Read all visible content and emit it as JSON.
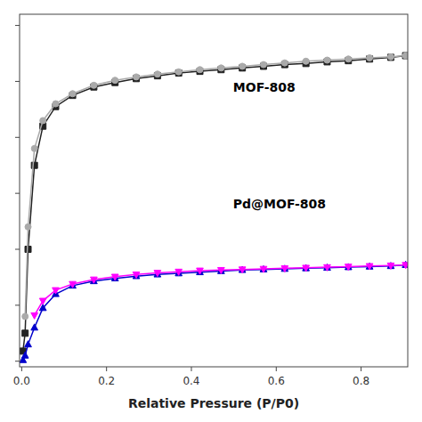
{
  "chart_data": {
    "type": "line",
    "xlabel": "Relative Pressure (P/P0)",
    "xlim": [
      -0.005,
      0.91
    ],
    "ylim": [
      -10,
      620
    ],
    "xticks": [
      {
        "value": 0,
        "label": "0.0"
      },
      0.2,
      0.4,
      0.6,
      0.8
    ],
    "yticks": [
      0,
      100,
      200,
      300,
      400,
      500,
      600
    ],
    "tick_labels": "x",
    "grid": false,
    "annotations": [
      "MOF-808",
      "Pd@MOF-808"
    ],
    "series": [
      {
        "color": "#222222",
        "marker": "square",
        "line_style": "solid",
        "x": [
          0.003,
          0.008,
          0.015,
          0.03,
          0.05,
          0.08,
          0.12,
          0.17,
          0.22,
          0.27,
          0.32,
          0.37,
          0.42,
          0.47,
          0.52,
          0.57,
          0.62,
          0.67,
          0.72,
          0.77,
          0.82,
          0.87,
          0.905
        ],
        "values": [
          18,
          50,
          200,
          350,
          420,
          455,
          475,
          490,
          498,
          505,
          510,
          515,
          518,
          521,
          524,
          527,
          530,
          532,
          535,
          537,
          540,
          543,
          546
        ]
      },
      {
        "color": "#aaaaaa",
        "marker": "circle",
        "line_style": "solid",
        "x": [
          0.905,
          0.87,
          0.82,
          0.77,
          0.72,
          0.67,
          0.62,
          0.57,
          0.52,
          0.47,
          0.42,
          0.37,
          0.32,
          0.27,
          0.22,
          0.17,
          0.12,
          0.08,
          0.05,
          0.03,
          0.015,
          0.008
        ],
        "values": [
          546,
          544,
          542,
          540,
          538,
          536,
          533,
          530,
          527,
          524,
          521,
          517,
          513,
          508,
          502,
          493,
          478,
          460,
          430,
          380,
          240,
          80
        ]
      },
      {
        "color": "#0000cc",
        "marker": "triangle-up",
        "line_style": "solid",
        "x": [
          0.003,
          0.008,
          0.015,
          0.03,
          0.05,
          0.08,
          0.12,
          0.17,
          0.22,
          0.27,
          0.32,
          0.37,
          0.42,
          0.47,
          0.52,
          0.57,
          0.62,
          0.67,
          0.72,
          0.77,
          0.82,
          0.87,
          0.905
        ],
        "values": [
          2,
          10,
          30,
          60,
          95,
          120,
          135,
          143,
          148,
          152,
          155,
          157,
          159,
          161,
          163,
          164,
          165,
          166,
          167,
          168,
          169,
          170,
          172
        ]
      },
      {
        "color": "#ff00ff",
        "marker": "triangle-down",
        "line_style": "solid",
        "x": [
          0.905,
          0.87,
          0.82,
          0.77,
          0.72,
          0.67,
          0.62,
          0.57,
          0.52,
          0.47,
          0.42,
          0.37,
          0.32,
          0.27,
          0.22,
          0.17,
          0.12,
          0.08,
          0.05,
          0.03
        ],
        "values": [
          172,
          171,
          170,
          169,
          168,
          167,
          166,
          165,
          164,
          163,
          162,
          160,
          158,
          155,
          151,
          146,
          138,
          127,
          108,
          82
        ]
      }
    ]
  }
}
